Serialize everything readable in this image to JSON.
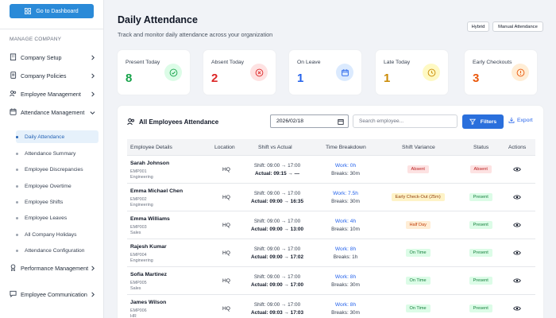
{
  "sidebar": {
    "dashboard_button": "Go to Dashboard",
    "section_label": "MANAGE COMPANY",
    "items": [
      {
        "label": "Company Setup",
        "icon": "building-icon"
      },
      {
        "label": "Company Policies",
        "icon": "document-icon"
      },
      {
        "label": "Employee Management",
        "icon": "users-icon"
      },
      {
        "label": "Attendance Management",
        "icon": "calendar-icon"
      },
      {
        "label": "Performance Management",
        "icon": "trophy-icon"
      },
      {
        "label": "Employee Communication",
        "icon": "chat-icon"
      }
    ],
    "sub_items": [
      "Daily Attendance",
      "Attendance Summary",
      "Employee Discrepancies",
      "Employee Overtime",
      "Employee Shifts",
      "Employee Leaves",
      "All Company Holidays",
      "Attendance Configuration"
    ],
    "active_sub_item": "Daily Attendance"
  },
  "header": {
    "title": "Daily Attendance",
    "subtitle": "Track and monitor daily attendance across your organization",
    "tags": [
      "Hybrid",
      "Manual Attendance"
    ]
  },
  "stats": [
    {
      "label": "Present Today",
      "value": "8",
      "color": "#16a34a",
      "icon": "check-circle-icon",
      "bg": "#dcfce7"
    },
    {
      "label": "Absent Today",
      "value": "2",
      "color": "#dc2626",
      "icon": "x-circle-icon",
      "bg": "#fee2e2"
    },
    {
      "label": "On Leave",
      "value": "1",
      "color": "#2563eb",
      "icon": "calendar-icon",
      "bg": "#dbeafe"
    },
    {
      "label": "Late Today",
      "value": "1",
      "color": "#ca8a04",
      "icon": "clock-icon",
      "bg": "#fef9c3"
    },
    {
      "label": "Early Checkouts",
      "value": "3",
      "color": "#ea580c",
      "icon": "alert-circle-icon",
      "bg": "#ffedd5"
    }
  ],
  "panel": {
    "title": "All Employees Attendance",
    "date": "2026/02/18",
    "search_placeholder": "Search employee...",
    "filters_label": "Filters",
    "export_label": "Export"
  },
  "table": {
    "columns": [
      "Employee Details",
      "Location",
      "Shift vs Actual",
      "Time Breakdown",
      "Shift Variance",
      "Status",
      "Actions"
    ],
    "rows": [
      {
        "name": "Sarah Johnson",
        "id": "EMP001",
        "dept": "Engineering",
        "location": "HQ",
        "shift": "Shift: 09:00 → 17:00",
        "actual": "Actual: 09:15 → —",
        "work": "Work: 0h",
        "breaks": "Breaks: 30m",
        "variance": "Absent",
        "variance_type": "red",
        "status": "Absent",
        "status_type": "red"
      },
      {
        "name": "Emma Michael Chen",
        "id": "EMP002",
        "dept": "Engineering",
        "location": "HQ",
        "shift": "Shift: 09:00 → 17:00",
        "actual": "Actual: 09:00 → 16:35",
        "work": "Work: 7.5h",
        "breaks": "Breaks: 30m",
        "variance": "Early Check-Out (25m)",
        "variance_type": "yellow",
        "status": "Present",
        "status_type": "green"
      },
      {
        "name": "Emma Williams",
        "id": "EMP003",
        "dept": "Sales",
        "location": "HQ",
        "shift": "Shift: 09:00 → 17:00",
        "actual": "Actual: 09:00 → 13:00",
        "work": "Work: 4h",
        "breaks": "Breaks: 10m",
        "variance": "Half Day",
        "variance_type": "orange",
        "status": "Present",
        "status_type": "green"
      },
      {
        "name": "Rajesh Kumar",
        "id": "EMP004",
        "dept": "Engineering",
        "location": "HQ",
        "shift": "Shift: 09:00 → 17:00",
        "actual": "Actual: 09:00 → 17:02",
        "work": "Work: 8h",
        "breaks": "Breaks: 1h",
        "variance": "On Time",
        "variance_type": "green",
        "status": "Present",
        "status_type": "green"
      },
      {
        "name": "Sofia Martinez",
        "id": "EMP005",
        "dept": "Sales",
        "location": "HQ",
        "shift": "Shift: 09:00 → 17:00",
        "actual": "Actual: 09:00 → 17:00",
        "work": "Work: 8h",
        "breaks": "Breaks: 30m",
        "variance": "On Time",
        "variance_type": "green",
        "status": "Present",
        "status_type": "green"
      },
      {
        "name": "James Wilson",
        "id": "EMP006",
        "dept": "HR",
        "location": "HQ",
        "shift": "Shift: 09:00 → 17:00",
        "actual": "Actual: 09:03 → 17:03",
        "work": "Work: 8h",
        "breaks": "Breaks: 30m",
        "variance": "On Time",
        "variance_type": "green",
        "status": "Present",
        "status_type": "green"
      }
    ]
  },
  "badge_colors": {
    "red": {
      "bg": "#fde2e2",
      "fg": "#b91c1c"
    },
    "green": {
      "bg": "#dcfce7",
      "fg": "#15803d"
    },
    "yellow": {
      "bg": "#fef3c7",
      "fg": "#92400e"
    },
    "orange": {
      "bg": "#ffedd5",
      "fg": "#c2410c"
    }
  }
}
